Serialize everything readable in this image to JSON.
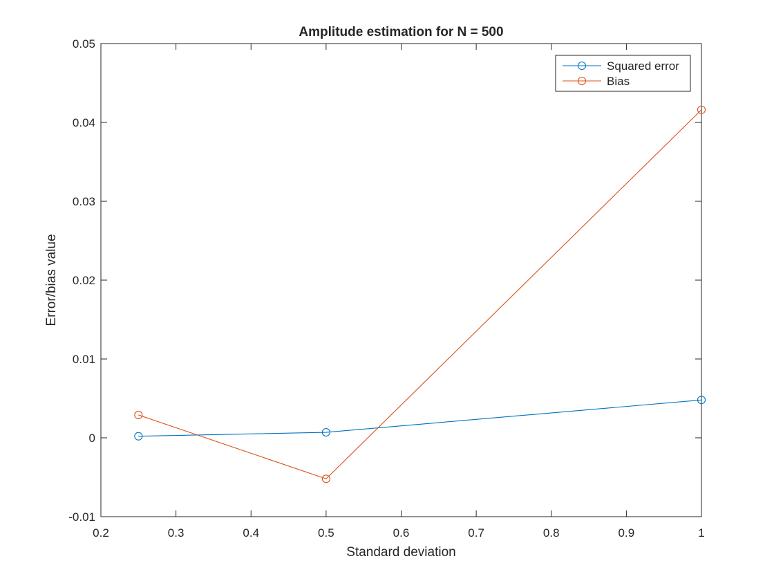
{
  "chart_data": {
    "type": "line",
    "title": "Amplitude estimation for N = 500",
    "xlabel": "Standard deviation",
    "ylabel": "Error/bias value",
    "xlim": [
      0.2,
      1.0
    ],
    "ylim": [
      -0.01,
      0.05
    ],
    "xticks": [
      0.2,
      0.3,
      0.4,
      0.5,
      0.6,
      0.7,
      0.8,
      0.9,
      1.0
    ],
    "xtick_labels": [
      "0.2",
      "0.3",
      "0.4",
      "0.5",
      "0.6",
      "0.7",
      "0.8",
      "0.9",
      "1"
    ],
    "yticks": [
      -0.01,
      0,
      0.01,
      0.02,
      0.03,
      0.04,
      0.05
    ],
    "ytick_labels": [
      "-0.01",
      "0",
      "0.01",
      "0.02",
      "0.03",
      "0.04",
      "0.05"
    ],
    "grid": false,
    "legend_position": "top-right",
    "x": [
      0.25,
      0.5,
      1.0
    ],
    "series": [
      {
        "name": "Squared error",
        "color": "#0072BD",
        "marker": "circle",
        "values": [
          0.0002,
          0.0007,
          0.0048
        ]
      },
      {
        "name": "Bias",
        "color": "#D95319",
        "marker": "circle",
        "values": [
          0.0029,
          -0.0052,
          0.0416
        ]
      }
    ]
  }
}
